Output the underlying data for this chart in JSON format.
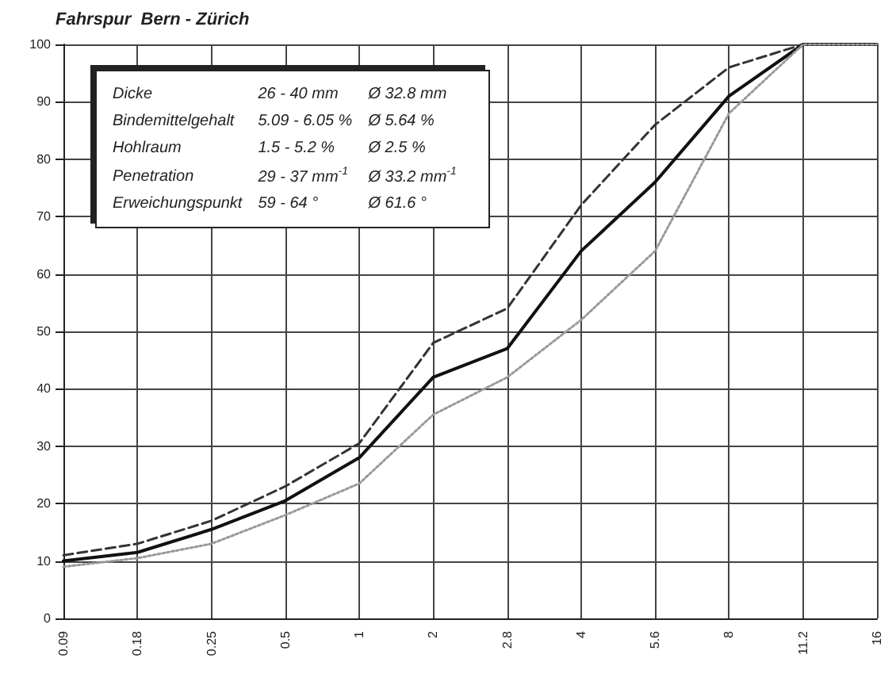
{
  "chart_data": {
    "type": "line",
    "title": "Fahrspur  Bern - Zürich",
    "categories": [
      "0.09",
      "0.18",
      "0.25",
      "0.5",
      "1",
      "2",
      "2.8",
      "4",
      "5.6",
      "8",
      "11.2",
      "16"
    ],
    "series": [
      {
        "color": "#333333",
        "line_style": "dashed",
        "values": [
          11,
          13,
          17,
          23,
          30.5,
          48,
          54,
          72,
          86,
          96,
          100,
          100
        ]
      },
      {
        "color": "#111111",
        "line_style": "solid",
        "values": [
          10,
          11.5,
          15.5,
          20.5,
          28,
          42,
          47,
          64,
          76,
          91,
          100,
          100
        ]
      },
      {
        "color": "#999999",
        "line_style": "dotted",
        "values": [
          9,
          10.5,
          13,
          18,
          23.5,
          35.5,
          42,
          52,
          64,
          88,
          100,
          100
        ]
      }
    ],
    "ylim": [
      0,
      100
    ],
    "yticks": [
      0,
      10,
      20,
      30,
      40,
      50,
      60,
      70,
      80,
      90,
      100
    ],
    "grid": true,
    "marker": "none",
    "annotations": [
      "Dicke",
      "26  - 40 mm",
      "Ø 32.8 mm",
      "Bindemittelgehalt",
      "5.09 - 6.05 %",
      "Ø 5.64 %",
      "Hohlraum",
      "1.5  - 5.2 %",
      "Ø 2.5 %",
      "Penetration",
      "29  - 37 mm$^{-1}$",
      "Ø 33.2 mm$^{-1}$",
      "Erweichungspunkt",
      "59  - 64 °",
      "Ø 61.6 °"
    ]
  }
}
